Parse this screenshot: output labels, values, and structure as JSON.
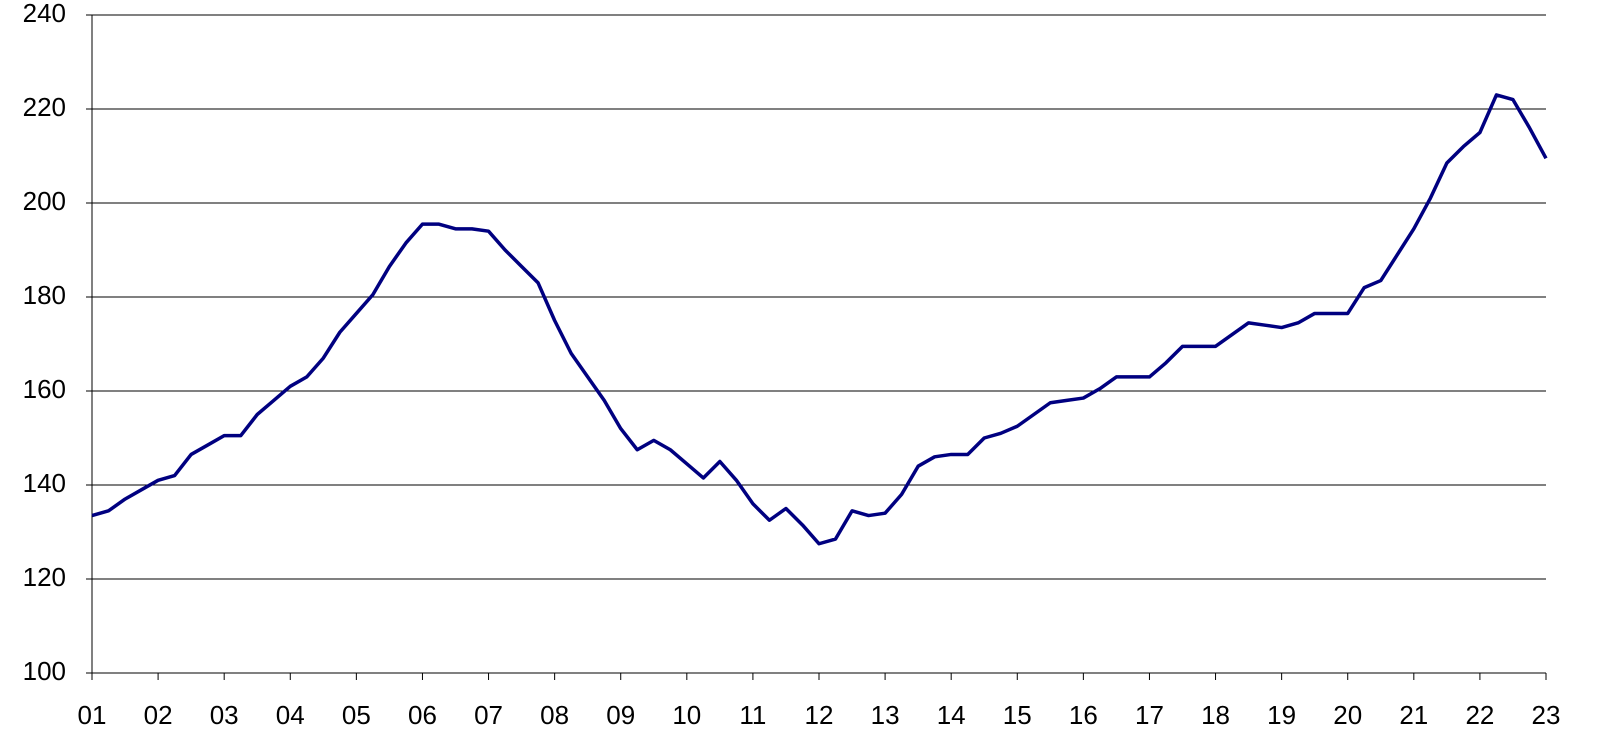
{
  "chart_data": {
    "type": "line",
    "x": [
      1,
      1.25,
      1.5,
      1.75,
      2,
      2.25,
      2.5,
      2.75,
      3,
      3.25,
      3.5,
      3.75,
      4,
      4.25,
      4.5,
      4.75,
      5,
      5.25,
      5.5,
      5.75,
      6,
      6.25,
      6.5,
      6.75,
      7,
      7.25,
      7.5,
      7.75,
      8,
      8.25,
      8.5,
      8.75,
      9,
      9.25,
      9.5,
      9.75,
      10,
      10.25,
      10.5,
      10.75,
      11,
      11.25,
      11.5,
      11.75,
      12,
      12.25,
      12.5,
      12.75,
      13,
      13.25,
      13.5,
      13.75,
      14,
      14.25,
      14.5,
      14.75,
      15,
      15.25,
      15.5,
      15.75,
      16,
      16.25,
      16.5,
      16.75,
      17,
      17.25,
      17.5,
      17.75,
      18,
      18.25,
      18.5,
      18.75,
      19,
      19.25,
      19.5,
      19.75,
      20,
      20.25,
      20.5,
      20.75,
      21,
      21.25,
      21.5,
      21.75,
      22,
      22.25,
      22.5,
      22.75,
      23
    ],
    "values": [
      133.5,
      134.5,
      137,
      139,
      141,
      142,
      146.5,
      148.5,
      150.5,
      150.5,
      155,
      158,
      161,
      163,
      167,
      172.5,
      176.5,
      180.5,
      186.5,
      191.5,
      195.5,
      195.5,
      194.5,
      194.5,
      194,
      190,
      186.5,
      183,
      175,
      168,
      163,
      158,
      152,
      147.5,
      149.5,
      147.5,
      144.5,
      141.5,
      145,
      141,
      136,
      132.5,
      135,
      131.5,
      127.5,
      128.5,
      134.5,
      133.5,
      134,
      138,
      144,
      146,
      146.5,
      146.5,
      150,
      151,
      152.5,
      155,
      157.5,
      158,
      158.5,
      160.5,
      163,
      163,
      163,
      166,
      169.5,
      169.5,
      169.5,
      172,
      174.5,
      174,
      173.5,
      174.5,
      176.5,
      176.5,
      176.5,
      182,
      183.5,
      189,
      194.5,
      201,
      208.5,
      212,
      215,
      223,
      222,
      216,
      209.5
    ],
    "color": "#000080",
    "xlim": [
      1,
      23
    ],
    "xticks": [
      {
        "value": 1,
        "label": "01"
      },
      {
        "value": 2,
        "label": "02"
      },
      {
        "value": 3,
        "label": "03"
      },
      {
        "value": 4,
        "label": "04"
      },
      {
        "value": 5,
        "label": "05"
      },
      {
        "value": 6,
        "label": "06"
      },
      {
        "value": 7,
        "label": "07"
      },
      {
        "value": 8,
        "label": "08"
      },
      {
        "value": 9,
        "label": "09"
      },
      {
        "value": 10,
        "label": "10"
      },
      {
        "value": 11,
        "label": "11"
      },
      {
        "value": 12,
        "label": "12"
      },
      {
        "value": 13,
        "label": "13"
      },
      {
        "value": 14,
        "label": "14"
      },
      {
        "value": 15,
        "label": "15"
      },
      {
        "value": 16,
        "label": "16"
      },
      {
        "value": 17,
        "label": "17"
      },
      {
        "value": 18,
        "label": "18"
      },
      {
        "value": 19,
        "label": "19"
      },
      {
        "value": 20,
        "label": "20"
      },
      {
        "value": 21,
        "label": "21"
      },
      {
        "value": 22,
        "label": "22"
      },
      {
        "value": 23,
        "label": "23"
      }
    ],
    "ylim": [
      100,
      240
    ],
    "yticks": [
      100,
      120,
      140,
      160,
      180,
      200,
      220,
      240
    ],
    "grid": true
  }
}
